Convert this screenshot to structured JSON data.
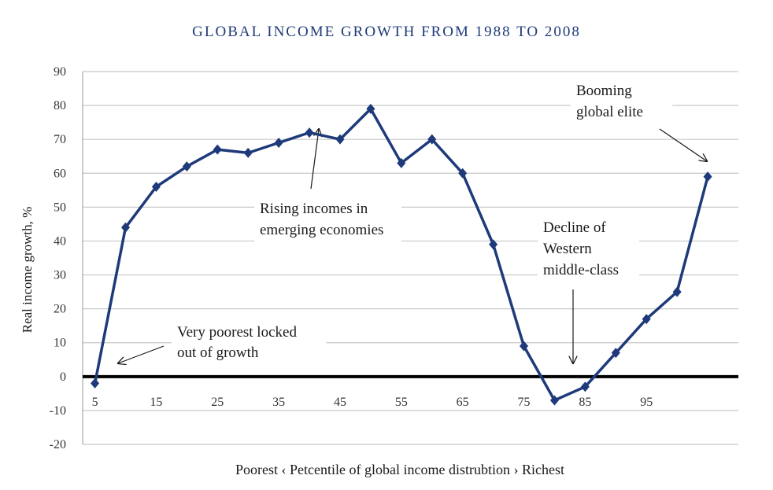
{
  "chart_data": {
    "type": "line",
    "title": "GLOBAL INCOME GROWTH FROM 1988 TO 2008",
    "xlabel": "Poorest  ‹  Petcentile of global income distrubtion  ›  Richest",
    "ylabel": "Real income growth, %",
    "x": [
      5,
      10,
      15,
      20,
      25,
      30,
      35,
      40,
      45,
      50,
      55,
      60,
      65,
      70,
      75,
      80,
      85,
      90,
      95,
      100,
      105
    ],
    "x_tick_labels": [
      "5",
      "15",
      "25",
      "35",
      "45",
      "55",
      "65",
      "75",
      "85",
      "95"
    ],
    "x_ticks": [
      5,
      15,
      25,
      35,
      45,
      55,
      65,
      75,
      85,
      95
    ],
    "y_ticks": [
      90,
      80,
      70,
      60,
      50,
      40,
      30,
      20,
      10,
      0,
      -10,
      -20
    ],
    "ylim": [
      -20,
      90
    ],
    "xlim": [
      3,
      110
    ],
    "grid": true,
    "series": [
      {
        "values": [
          -2,
          44,
          56,
          62,
          67,
          66,
          69,
          72,
          70,
          79,
          63,
          70,
          60,
          39,
          9,
          -7,
          -3,
          7,
          17,
          25,
          59
        ],
        "color": "#1f3a7a",
        "marker": "diamond"
      }
    ],
    "annotations": [
      {
        "lines": [
          "Booming",
          "global elite"
        ]
      },
      {
        "lines": [
          "Rising incomes in",
          "emerging economies"
        ]
      },
      {
        "lines": [
          "Decline of",
          "Western",
          "middle-class"
        ]
      },
      {
        "lines": [
          "Very poorest locked",
          "out of growth"
        ]
      }
    ]
  }
}
